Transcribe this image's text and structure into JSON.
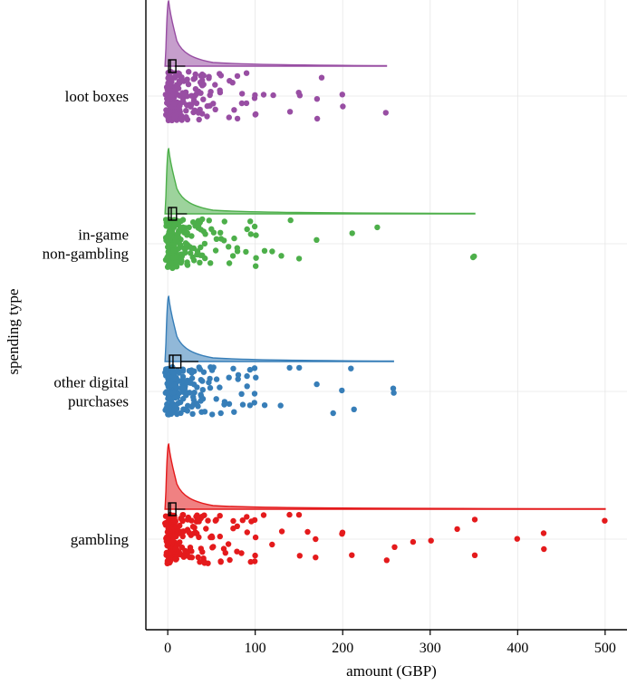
{
  "chart_data": {
    "type": "raincloud",
    "title": "",
    "xlabel": "amount (GBP)",
    "ylabel": "spending type",
    "xlim": [
      -25,
      525
    ],
    "xticks": [
      0,
      100,
      200,
      300,
      400,
      500
    ],
    "grid": true,
    "legend": "none",
    "categories": [
      {
        "key": "loot_boxes",
        "label_lines": [
          "loot boxes"
        ],
        "color": "#984EA3",
        "max_value": 250,
        "box": {
          "q1": 1,
          "median": 3,
          "q3": 8,
          "whisker_high": 20
        },
        "points": [
          0,
          0,
          1,
          1,
          1,
          2,
          2,
          2,
          3,
          3,
          4,
          4,
          5,
          5,
          5,
          6,
          7,
          8,
          9,
          10,
          10,
          12,
          12,
          14,
          15,
          15,
          17,
          19,
          20,
          22,
          25,
          25,
          28,
          30,
          30,
          32,
          35,
          38,
          40,
          40,
          42,
          45,
          48,
          50,
          50,
          55,
          60,
          60,
          70,
          75,
          80,
          85,
          90,
          100,
          100,
          110,
          120,
          140,
          150,
          150,
          170,
          170,
          175,
          200,
          200,
          250
        ]
      },
      {
        "key": "in_game_non_gambling",
        "label_lines": [
          "in-game",
          "non-gambling"
        ],
        "color": "#4DAF4A",
        "max_value": 351,
        "box": {
          "q1": 1,
          "median": 4,
          "q3": 10,
          "whisker_high": 22
        },
        "points": [
          0,
          0,
          1,
          1,
          1,
          2,
          2,
          3,
          3,
          4,
          4,
          5,
          5,
          6,
          7,
          8,
          9,
          10,
          10,
          11,
          12,
          13,
          15,
          15,
          17,
          18,
          20,
          20,
          22,
          25,
          25,
          28,
          30,
          30,
          33,
          35,
          38,
          40,
          40,
          45,
          50,
          50,
          55,
          60,
          65,
          70,
          75,
          80,
          90,
          95,
          100,
          100,
          110,
          120,
          130,
          140,
          150,
          170,
          210,
          240,
          350,
          351
        ]
      },
      {
        "key": "other_digital_purchases",
        "label_lines": [
          "other digital",
          "purchases"
        ],
        "color": "#377EB8",
        "max_value": 258,
        "box": {
          "q1": 2,
          "median": 6,
          "q3": 15,
          "whisker_high": 35
        },
        "points": [
          0,
          0,
          1,
          1,
          2,
          2,
          3,
          3,
          4,
          5,
          5,
          6,
          7,
          8,
          9,
          10,
          10,
          12,
          13,
          15,
          15,
          17,
          18,
          20,
          20,
          22,
          25,
          25,
          28,
          30,
          30,
          32,
          35,
          38,
          40,
          40,
          45,
          48,
          50,
          50,
          55,
          60,
          65,
          70,
          75,
          80,
          85,
          90,
          95,
          100,
          100,
          110,
          130,
          140,
          150,
          170,
          190,
          200,
          210,
          212,
          258,
          258
        ]
      },
      {
        "key": "gambling",
        "label_lines": [
          "gambling"
        ],
        "color": "#E41A1C",
        "max_value": 500,
        "box": {
          "q1": 1,
          "median": 3,
          "q3": 8,
          "whisker_high": 20
        },
        "points": [
          0,
          0,
          1,
          1,
          1,
          2,
          2,
          3,
          3,
          4,
          5,
          5,
          6,
          7,
          8,
          9,
          10,
          10,
          12,
          14,
          15,
          15,
          17,
          19,
          20,
          22,
          25,
          25,
          28,
          30,
          30,
          33,
          35,
          38,
          40,
          40,
          45,
          48,
          50,
          50,
          55,
          60,
          60,
          65,
          70,
          75,
          80,
          85,
          90,
          95,
          100,
          100,
          110,
          120,
          130,
          140,
          150,
          150,
          160,
          170,
          170,
          200,
          200,
          210,
          250,
          260,
          280,
          300,
          330,
          350,
          350,
          400,
          430,
          430,
          500
        ]
      }
    ]
  }
}
